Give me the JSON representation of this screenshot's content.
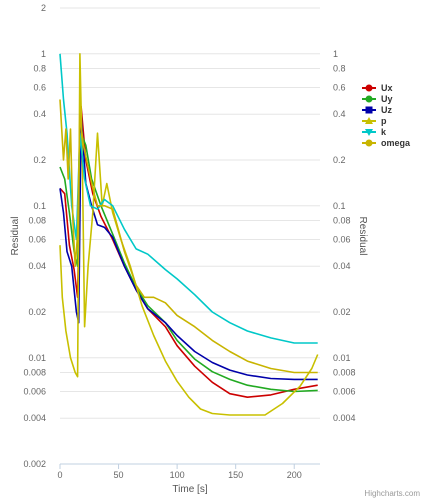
{
  "chart_data": {
    "type": "line",
    "title": "",
    "xlabel": "Time [s]",
    "ylabel_left": "Residual",
    "ylabel_right": "Residual",
    "yscale": "log",
    "ylim": [
      0.002,
      2
    ],
    "xlim": [
      0,
      222
    ],
    "x_ticks": [
      0,
      50,
      100,
      150,
      200
    ],
    "y_ticks": [
      {
        "value": 2,
        "label": "2"
      },
      {
        "value": 1,
        "label": "1"
      },
      {
        "value": 0.8,
        "label": "0.8"
      },
      {
        "value": 0.6,
        "label": "0.6"
      },
      {
        "value": 0.4,
        "label": "0.4"
      },
      {
        "value": 0.2,
        "label": "0.2"
      },
      {
        "value": 0.1,
        "label": "0.1"
      },
      {
        "value": 0.08,
        "label": "0.08"
      },
      {
        "value": 0.06,
        "label": "0.06"
      },
      {
        "value": 0.04,
        "label": "0.04"
      },
      {
        "value": 0.02,
        "label": "0.02"
      },
      {
        "value": 0.01,
        "label": "0.01"
      },
      {
        "value": 0.008,
        "label": "0.008"
      },
      {
        "value": 0.006,
        "label": "0.006"
      },
      {
        "value": 0.004,
        "label": "0.004"
      },
      {
        "value": 0.002,
        "label": "0.002"
      }
    ],
    "grid": true,
    "legend_position": "right",
    "series": [
      {
        "name": "Ux",
        "color": "#cc0000",
        "marker": "circle",
        "points": [
          [
            0,
            0.13
          ],
          [
            4,
            0.12
          ],
          [
            8,
            0.055
          ],
          [
            12,
            0.038
          ],
          [
            15,
            0.025
          ],
          [
            18,
            0.45
          ],
          [
            22,
            0.2
          ],
          [
            28,
            0.12
          ],
          [
            35,
            0.085
          ],
          [
            45,
            0.06
          ],
          [
            55,
            0.04
          ],
          [
            65,
            0.028
          ],
          [
            75,
            0.021
          ],
          [
            90,
            0.016
          ],
          [
            100,
            0.012
          ],
          [
            115,
            0.0088
          ],
          [
            130,
            0.0069
          ],
          [
            145,
            0.0058
          ],
          [
            160,
            0.0055
          ],
          [
            180,
            0.0057
          ],
          [
            200,
            0.0062
          ],
          [
            220,
            0.0066
          ]
        ]
      },
      {
        "name": "Uy",
        "color": "#22aa22",
        "marker": "circle",
        "points": [
          [
            0,
            0.18
          ],
          [
            4,
            0.15
          ],
          [
            8,
            0.09
          ],
          [
            12,
            0.05
          ],
          [
            15,
            0.04
          ],
          [
            18,
            0.3
          ],
          [
            22,
            0.25
          ],
          [
            27,
            0.15
          ],
          [
            35,
            0.1
          ],
          [
            45,
            0.065
          ],
          [
            55,
            0.042
          ],
          [
            65,
            0.029
          ],
          [
            75,
            0.022
          ],
          [
            90,
            0.017
          ],
          [
            100,
            0.013
          ],
          [
            115,
            0.0098
          ],
          [
            130,
            0.0081
          ],
          [
            145,
            0.0072
          ],
          [
            160,
            0.0066
          ],
          [
            180,
            0.0062
          ],
          [
            200,
            0.006
          ],
          [
            220,
            0.0061
          ]
        ]
      },
      {
        "name": "Uz",
        "color": "#0000aa",
        "marker": "square",
        "points": [
          [
            0,
            0.13
          ],
          [
            3,
            0.09
          ],
          [
            6,
            0.05
          ],
          [
            10,
            0.04
          ],
          [
            14,
            0.02
          ],
          [
            16,
            0.017
          ],
          [
            18,
            0.4
          ],
          [
            22,
            0.14
          ],
          [
            27,
            0.1
          ],
          [
            32,
            0.075
          ],
          [
            38,
            0.072
          ],
          [
            45,
            0.062
          ],
          [
            55,
            0.04
          ],
          [
            65,
            0.028
          ],
          [
            75,
            0.021
          ],
          [
            90,
            0.017
          ],
          [
            100,
            0.014
          ],
          [
            115,
            0.011
          ],
          [
            130,
            0.0093
          ],
          [
            145,
            0.0083
          ],
          [
            160,
            0.0077
          ],
          [
            180,
            0.0073
          ],
          [
            200,
            0.0072
          ],
          [
            220,
            0.0072
          ]
        ]
      },
      {
        "name": "p",
        "color": "#c8c000",
        "marker": "triangle",
        "points": [
          [
            0,
            0.055
          ],
          [
            2,
            0.025
          ],
          [
            5,
            0.015
          ],
          [
            9,
            0.01
          ],
          [
            13,
            0.008
          ],
          [
            15,
            0.0075
          ],
          [
            17,
            1.0
          ],
          [
            19,
            0.2
          ],
          [
            21,
            0.016
          ],
          [
            24,
            0.04
          ],
          [
            28,
            0.09
          ],
          [
            32,
            0.3
          ],
          [
            36,
            0.1
          ],
          [
            40,
            0.14
          ],
          [
            45,
            0.09
          ],
          [
            52,
            0.06
          ],
          [
            60,
            0.04
          ],
          [
            70,
            0.022
          ],
          [
            80,
            0.014
          ],
          [
            90,
            0.0095
          ],
          [
            100,
            0.007
          ],
          [
            110,
            0.0055
          ],
          [
            120,
            0.0046
          ],
          [
            130,
            0.0043
          ],
          [
            145,
            0.0042
          ],
          [
            160,
            0.0042
          ],
          [
            175,
            0.0042
          ],
          [
            190,
            0.005
          ],
          [
            205,
            0.0065
          ],
          [
            215,
            0.0085
          ],
          [
            220,
            0.0105
          ]
        ]
      },
      {
        "name": "k",
        "color": "#00c8c8",
        "marker": "triangle-down",
        "points": [
          [
            0,
            1.0
          ],
          [
            3,
            0.5
          ],
          [
            6,
            0.3
          ],
          [
            10,
            0.1
          ],
          [
            14,
            0.06
          ],
          [
            17,
            0.3
          ],
          [
            21,
            0.15
          ],
          [
            26,
            0.1
          ],
          [
            32,
            0.095
          ],
          [
            38,
            0.11
          ],
          [
            45,
            0.1
          ],
          [
            55,
            0.07
          ],
          [
            65,
            0.052
          ],
          [
            75,
            0.048
          ],
          [
            90,
            0.038
          ],
          [
            100,
            0.033
          ],
          [
            115,
            0.026
          ],
          [
            130,
            0.02
          ],
          [
            145,
            0.017
          ],
          [
            160,
            0.015
          ],
          [
            180,
            0.0135
          ],
          [
            200,
            0.0125
          ],
          [
            220,
            0.0125
          ]
        ]
      },
      {
        "name": "omega",
        "color": "#c8b400",
        "marker": "circle",
        "points": [
          [
            0,
            0.5
          ],
          [
            3,
            0.2
          ],
          [
            5,
            0.32
          ],
          [
            7,
            0.15
          ],
          [
            9,
            0.32
          ],
          [
            11,
            0.08
          ],
          [
            13,
            0.04
          ],
          [
            15,
            0.065
          ],
          [
            17,
            0.4
          ],
          [
            20,
            0.25
          ],
          [
            24,
            0.18
          ],
          [
            28,
            0.13
          ],
          [
            32,
            0.1
          ],
          [
            38,
            0.1
          ],
          [
            45,
            0.095
          ],
          [
            55,
            0.05
          ],
          [
            65,
            0.03
          ],
          [
            72,
            0.025
          ],
          [
            80,
            0.025
          ],
          [
            90,
            0.023
          ],
          [
            100,
            0.019
          ],
          [
            115,
            0.016
          ],
          [
            130,
            0.013
          ],
          [
            145,
            0.011
          ],
          [
            160,
            0.0095
          ],
          [
            180,
            0.0085
          ],
          [
            200,
            0.008
          ],
          [
            220,
            0.008
          ]
        ]
      }
    ],
    "credits": "Highcharts.com"
  }
}
